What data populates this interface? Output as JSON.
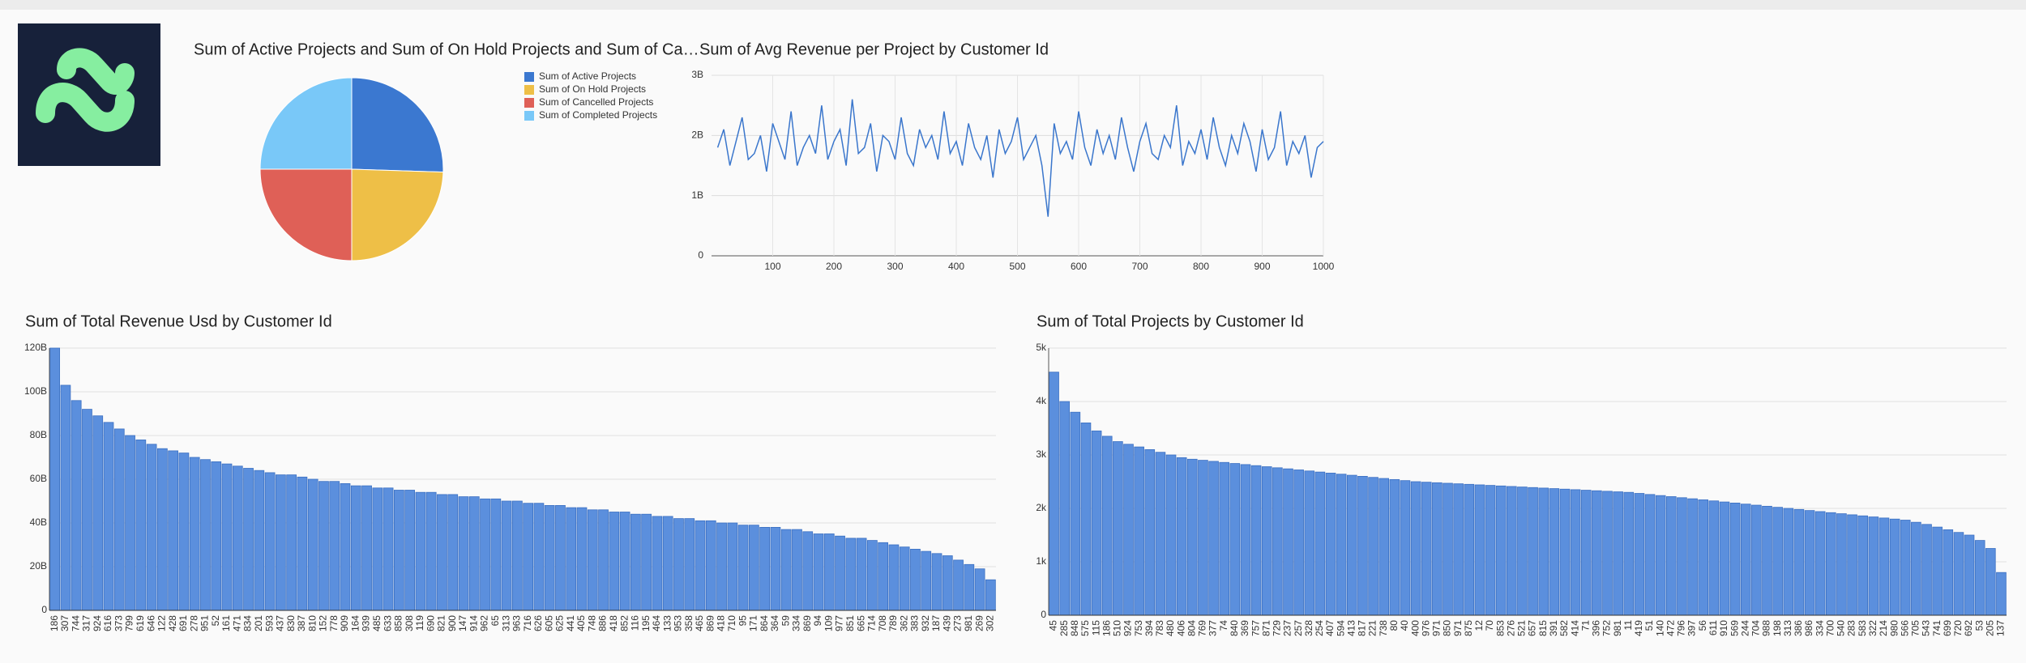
{
  "chart_data": [
    {
      "type": "pie",
      "title": "Sum of Active Projects and Sum of On Hold Projects and Sum of Ca…",
      "categories": [
        "Sum of Active Projects",
        "Sum of On Hold Projects",
        "Sum of Cancelled Projects",
        "Sum of Completed Projects"
      ],
      "values": [
        25.5,
        24.5,
        25,
        25
      ],
      "colors": [
        "#3b78d0",
        "#eebf47",
        "#df6057",
        "#79c8f8"
      ]
    },
    {
      "type": "line",
      "title": "Sum of Avg Revenue per Project by Customer Id",
      "color": "#3a76cc",
      "grid": true,
      "x": [
        10,
        20,
        30,
        40,
        50,
        60,
        70,
        80,
        90,
        100,
        110,
        120,
        130,
        140,
        150,
        160,
        170,
        180,
        190,
        200,
        210,
        220,
        230,
        240,
        250,
        260,
        270,
        280,
        290,
        300,
        310,
        320,
        330,
        340,
        350,
        360,
        370,
        380,
        390,
        400,
        410,
        420,
        430,
        440,
        450,
        460,
        470,
        480,
        490,
        500,
        510,
        520,
        530,
        540,
        550,
        560,
        570,
        580,
        590,
        600,
        610,
        620,
        630,
        640,
        650,
        660,
        670,
        680,
        690,
        700,
        710,
        720,
        730,
        740,
        750,
        760,
        770,
        780,
        790,
        800,
        810,
        820,
        830,
        840,
        850,
        860,
        870,
        880,
        890,
        900,
        910,
        920,
        930,
        940,
        950,
        960,
        970,
        980,
        990,
        1000
      ],
      "values": [
        1800000000.0,
        2100000000.0,
        1500000000.0,
        1900000000.0,
        2300000000.0,
        1600000000.0,
        1700000000.0,
        2000000000.0,
        1400000000.0,
        2200000000.0,
        1900000000.0,
        1600000000.0,
        2400000000.0,
        1500000000.0,
        1800000000.0,
        2000000000.0,
        1700000000.0,
        2500000000.0,
        1600000000.0,
        1900000000.0,
        2100000000.0,
        1500000000.0,
        2600000000.0,
        1700000000.0,
        1800000000.0,
        2200000000.0,
        1400000000.0,
        2000000000.0,
        1900000000.0,
        1600000000.0,
        2300000000.0,
        1700000000.0,
        1500000000.0,
        2100000000.0,
        1800000000.0,
        2000000000.0,
        1600000000.0,
        2400000000.0,
        1700000000.0,
        1900000000.0,
        1500000000.0,
        2200000000.0,
        1800000000.0,
        1600000000.0,
        2000000000.0,
        1300000000.0,
        2100000000.0,
        1700000000.0,
        1900000000.0,
        2300000000.0,
        1600000000.0,
        1800000000.0,
        2000000000.0,
        1500000000.0,
        650000000.0,
        2200000000.0,
        1700000000.0,
        1900000000.0,
        1600000000.0,
        2400000000.0,
        1800000000.0,
        1500000000.0,
        2100000000.0,
        1700000000.0,
        2000000000.0,
        1600000000.0,
        2300000000.0,
        1800000000.0,
        1400000000.0,
        1900000000.0,
        2200000000.0,
        1700000000.0,
        1600000000.0,
        2000000000.0,
        1800000000.0,
        2500000000.0,
        1500000000.0,
        1900000000.0,
        1700000000.0,
        2100000000.0,
        1600000000.0,
        2300000000.0,
        1800000000.0,
        1500000000.0,
        2000000000.0,
        1700000000.0,
        2200000000.0,
        1900000000.0,
        1400000000.0,
        2100000000.0,
        1600000000.0,
        1800000000.0,
        2400000000.0,
        1500000000.0,
        1900000000.0,
        1700000000.0,
        2000000000.0,
        1300000000.0,
        1800000000.0,
        1900000000.0
      ],
      "xlim": [
        0,
        1000
      ],
      "xticks": [
        100,
        200,
        300,
        400,
        500,
        600,
        700,
        800,
        900,
        1000
      ],
      "ylim": [
        0,
        3000000000.0
      ],
      "yticks": [
        0,
        {
          "value": 1000000000.0,
          "label": "1B"
        },
        {
          "value": 2000000000.0,
          "label": "2B"
        },
        {
          "value": 3000000000.0,
          "label": "3B"
        }
      ]
    },
    {
      "type": "bar",
      "title": "Sum of Total Revenue Usd by Customer Id",
      "color": "#5b8fdd",
      "grid": true,
      "categories": [
        "186",
        "307",
        "744",
        "317",
        "924",
        "616",
        "373",
        "799",
        "619",
        "646",
        "122",
        "428",
        "691",
        "278",
        "951",
        "52",
        "161",
        "471",
        "834",
        "201",
        "593",
        "437",
        "830",
        "387",
        "810",
        "152",
        "778",
        "909",
        "164",
        "939",
        "485",
        "633",
        "858",
        "308",
        "119",
        "690",
        "821",
        "900",
        "147",
        "914",
        "962",
        "65",
        "313",
        "963",
        "716",
        "626",
        "605",
        "625",
        "441",
        "405",
        "748",
        "886",
        "418",
        "852",
        "116",
        "195",
        "464",
        "133",
        "953",
        "358",
        "465",
        "869",
        "418",
        "710",
        "95",
        "171",
        "864",
        "364",
        "59",
        "334",
        "869",
        "94",
        "109",
        "977",
        "851",
        "665",
        "714",
        "708",
        "789",
        "362",
        "383",
        "932",
        "187",
        "439",
        "273",
        "981",
        "269",
        "302"
      ],
      "values": [
        120000000000.0,
        103000000000.0,
        96000000000.0,
        92000000000.0,
        89000000000.0,
        86000000000.0,
        83000000000.0,
        80000000000.0,
        78000000000.0,
        76000000000.0,
        74000000000.0,
        73000000000.0,
        72000000000.0,
        70000000000.0,
        69000000000.0,
        68000000000.0,
        67000000000.0,
        66000000000.0,
        65000000000.0,
        64000000000.0,
        63000000000.0,
        62000000000.0,
        62000000000.0,
        61000000000.0,
        60000000000.0,
        59000000000.0,
        59000000000.0,
        58000000000.0,
        57000000000.0,
        57000000000.0,
        56000000000.0,
        56000000000.0,
        55000000000.0,
        55000000000.0,
        54000000000.0,
        54000000000.0,
        53000000000.0,
        53000000000.0,
        52000000000.0,
        52000000000.0,
        51000000000.0,
        51000000000.0,
        50000000000.0,
        50000000000.0,
        49000000000.0,
        49000000000.0,
        48000000000.0,
        48000000000.0,
        47000000000.0,
        47000000000.0,
        46000000000.0,
        46000000000.0,
        45000000000.0,
        45000000000.0,
        44000000000.0,
        44000000000.0,
        43000000000.0,
        43000000000.0,
        42000000000.0,
        42000000000.0,
        41000000000.0,
        41000000000.0,
        40000000000.0,
        40000000000.0,
        39000000000.0,
        39000000000.0,
        38000000000.0,
        38000000000.0,
        37000000000.0,
        37000000000.0,
        36000000000.0,
        35000000000.0,
        35000000000.0,
        34000000000.0,
        33000000000.0,
        33000000000.0,
        32000000000.0,
        31000000000.0,
        30000000000.0,
        29000000000.0,
        28000000000.0,
        27000000000.0,
        26000000000.0,
        25000000000.0,
        23000000000.0,
        21000000000.0,
        19000000000.0,
        14000000000.0
      ],
      "ylim": [
        0,
        120000000000.0
      ],
      "yticks": [
        0,
        {
          "value": 20000000000.0,
          "label": "20B"
        },
        {
          "value": 40000000000.0,
          "label": "40B"
        },
        {
          "value": 60000000000.0,
          "label": "60B"
        },
        {
          "value": 80000000000.0,
          "label": "80B"
        },
        {
          "value": 100000000000.0,
          "label": "100B"
        },
        {
          "value": 120000000000.0,
          "label": "120B"
        }
      ]
    },
    {
      "type": "bar",
      "title": "Sum of Total Projects by Customer Id",
      "color": "#5b8fdd",
      "grid": true,
      "categories": [
        "45",
        "285",
        "848",
        "575",
        "115",
        "186",
        "510",
        "924",
        "753",
        "394",
        "783",
        "480",
        "406",
        "804",
        "769",
        "377",
        "74",
        "840",
        "369",
        "757",
        "871",
        "729",
        "237",
        "257",
        "328",
        "254",
        "407",
        "594",
        "413",
        "817",
        "221",
        "738",
        "80",
        "40",
        "400",
        "976",
        "971",
        "850",
        "971",
        "875",
        "12",
        "70",
        "853",
        "276",
        "521",
        "657",
        "815",
        "391",
        "582",
        "414",
        "71",
        "396",
        "752",
        "981",
        "11",
        "419",
        "51",
        "140",
        "472",
        "796",
        "397",
        "56",
        "611",
        "910",
        "569",
        "244",
        "704",
        "988",
        "198",
        "313",
        "386",
        "986",
        "334",
        "700",
        "540",
        "283",
        "583",
        "322",
        "214",
        "980",
        "566",
        "705",
        "543",
        "741",
        "699",
        "720",
        "692",
        "53",
        "205",
        "137"
      ],
      "values": [
        4550,
        4000,
        3800,
        3600,
        3450,
        3350,
        3250,
        3200,
        3150,
        3100,
        3050,
        3000,
        2950,
        2920,
        2900,
        2880,
        2860,
        2840,
        2820,
        2800,
        2780,
        2760,
        2740,
        2720,
        2700,
        2680,
        2660,
        2640,
        2620,
        2600,
        2580,
        2560,
        2540,
        2520,
        2500,
        2490,
        2480,
        2470,
        2460,
        2450,
        2440,
        2430,
        2420,
        2410,
        2400,
        2390,
        2380,
        2370,
        2360,
        2350,
        2340,
        2330,
        2320,
        2310,
        2300,
        2280,
        2260,
        2240,
        2220,
        2200,
        2180,
        2160,
        2140,
        2120,
        2100,
        2080,
        2060,
        2040,
        2020,
        2000,
        1980,
        1960,
        1940,
        1920,
        1900,
        1880,
        1860,
        1840,
        1820,
        1800,
        1780,
        1740,
        1700,
        1650,
        1600,
        1550,
        1500,
        1400,
        1250,
        800
      ],
      "ylim": [
        0,
        5000
      ],
      "yticks": [
        0,
        {
          "value": 1000,
          "label": "1k"
        },
        {
          "value": 2000,
          "label": "2k"
        },
        {
          "value": 3000,
          "label": "3k"
        },
        {
          "value": 4000,
          "label": "4k"
        },
        {
          "value": 5000,
          "label": "5k"
        }
      ]
    }
  ]
}
